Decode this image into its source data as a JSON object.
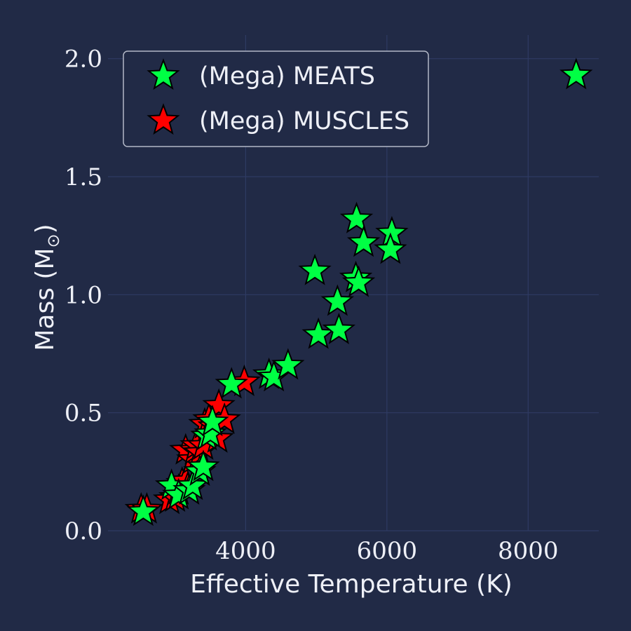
{
  "chart_data": {
    "type": "scatter",
    "xlabel": "Effective Temperature (K)",
    "ylabel_main": "Mass (M",
    "ylabel_sub": "⊙",
    "ylabel_close": ")",
    "xlim": [
      2050,
      9000
    ],
    "ylim": [
      0,
      2.1
    ],
    "x_ticks": [
      4000,
      6000,
      8000
    ],
    "x_tick_labels": [
      "4000",
      "6000",
      "8000"
    ],
    "y_ticks": [
      0.0,
      0.5,
      1.0,
      1.5,
      2.0
    ],
    "y_tick_labels": [
      "0.0",
      "0.5",
      "1.0",
      "1.5",
      "2.0"
    ],
    "grid": true,
    "legend_position": "top-left",
    "colors": {
      "background": "#212a46",
      "grid": "#2f3b63",
      "meats": "#00ff44",
      "muscles": "#ff0000",
      "edge": "#000000"
    },
    "series": [
      {
        "name": "(Mega) MEATS",
        "color": "#00ff44",
        "points": [
          {
            "x": 2550,
            "y": 0.08
          },
          {
            "x": 2950,
            "y": 0.19
          },
          {
            "x": 3050,
            "y": 0.15
          },
          {
            "x": 3200,
            "y": 0.17
          },
          {
            "x": 3250,
            "y": 0.19
          },
          {
            "x": 3350,
            "y": 0.25
          },
          {
            "x": 3400,
            "y": 0.27
          },
          {
            "x": 3450,
            "y": 0.4
          },
          {
            "x": 3500,
            "y": 0.41
          },
          {
            "x": 3530,
            "y": 0.46
          },
          {
            "x": 3800,
            "y": 0.62
          },
          {
            "x": 4330,
            "y": 0.66
          },
          {
            "x": 4400,
            "y": 0.65
          },
          {
            "x": 4600,
            "y": 0.7
          },
          {
            "x": 4980,
            "y": 1.1
          },
          {
            "x": 5030,
            "y": 0.83
          },
          {
            "x": 5320,
            "y": 0.85
          },
          {
            "x": 5300,
            "y": 0.97
          },
          {
            "x": 5560,
            "y": 1.07
          },
          {
            "x": 5600,
            "y": 1.05
          },
          {
            "x": 5570,
            "y": 1.32
          },
          {
            "x": 5670,
            "y": 1.22
          },
          {
            "x": 6070,
            "y": 1.26
          },
          {
            "x": 6050,
            "y": 1.19
          },
          {
            "x": 8680,
            "y": 1.93
          }
        ]
      },
      {
        "name": "(Mega) MUSCLES",
        "color": "#ff0000",
        "points": [
          {
            "x": 2520,
            "y": 0.09
          },
          {
            "x": 2600,
            "y": 0.09
          },
          {
            "x": 2920,
            "y": 0.13
          },
          {
            "x": 3000,
            "y": 0.14
          },
          {
            "x": 3050,
            "y": 0.17
          },
          {
            "x": 3100,
            "y": 0.2
          },
          {
            "x": 3150,
            "y": 0.21
          },
          {
            "x": 3180,
            "y": 0.18
          },
          {
            "x": 3150,
            "y": 0.34
          },
          {
            "x": 3250,
            "y": 0.3
          },
          {
            "x": 3280,
            "y": 0.34
          },
          {
            "x": 3300,
            "y": 0.36
          },
          {
            "x": 3350,
            "y": 0.33
          },
          {
            "x": 3400,
            "y": 0.36
          },
          {
            "x": 3420,
            "y": 0.45
          },
          {
            "x": 3480,
            "y": 0.47
          },
          {
            "x": 3550,
            "y": 0.44
          },
          {
            "x": 3600,
            "y": 0.39
          },
          {
            "x": 3620,
            "y": 0.53
          },
          {
            "x": 3700,
            "y": 0.47
          },
          {
            "x": 3980,
            "y": 0.63
          }
        ]
      }
    ]
  }
}
